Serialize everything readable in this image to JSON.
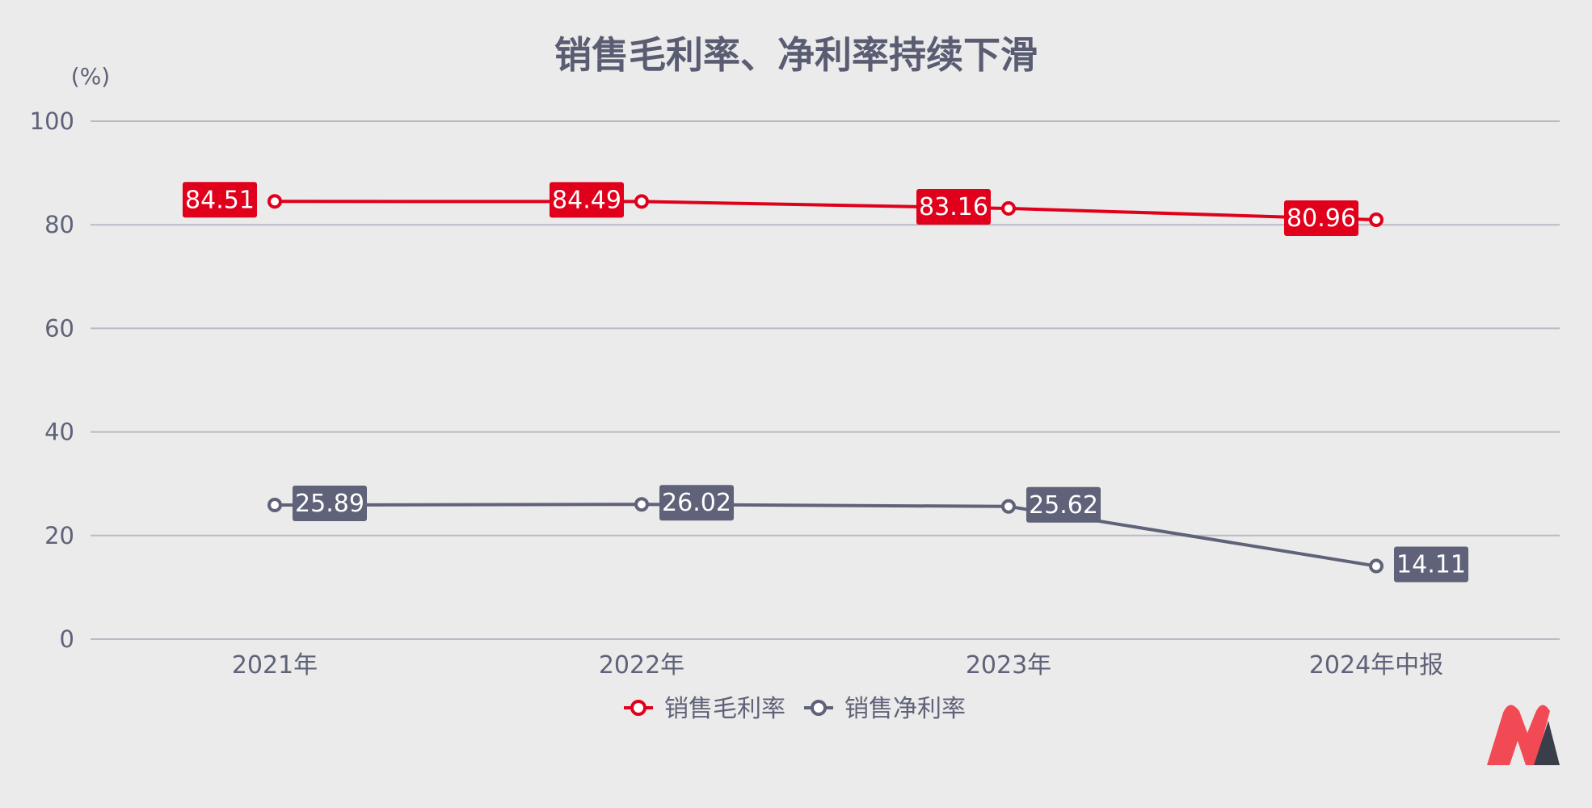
{
  "chart_data": {
    "type": "line",
    "title": "销售毛利率、净利率持续下滑",
    "unit_label": "(%)",
    "categories": [
      "2021年",
      "2022年",
      "2023年",
      "2024年中报"
    ],
    "ylim": [
      0,
      100
    ],
    "yticks": [
      0,
      20,
      40,
      60,
      80,
      100
    ],
    "grid": true,
    "legend_position": "bottom",
    "series": [
      {
        "name": "销售毛利率",
        "values": [
          84.51,
          84.49,
          83.16,
          80.96
        ],
        "color": "#e0001b"
      },
      {
        "name": "销售净利率",
        "values": [
          25.89,
          26.02,
          25.62,
          14.11
        ],
        "color": "#5f6278"
      }
    ]
  },
  "colors": {
    "background": "#ebebeb",
    "title": "#5a5d72",
    "axis_text": "#5f6278",
    "grid": "#b9bac4",
    "logo_red": "#f24a55",
    "logo_dark": "#3a3d4a"
  }
}
